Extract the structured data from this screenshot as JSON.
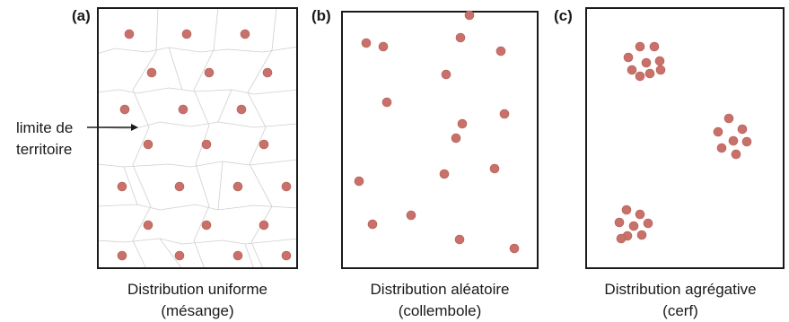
{
  "panels": [
    {
      "letter": "(a)",
      "caption_line1": "Distribution uniforme",
      "caption_line2": "(mésange)",
      "annotation_line1": "limite de",
      "annotation_line2": "territoire"
    },
    {
      "letter": "(b)",
      "caption_line1": "Distribution aléatoire",
      "caption_line2": "(collembole)"
    },
    {
      "letter": "(c)",
      "caption_line1": "Distribution agrégative",
      "caption_line2": "(cerf)"
    }
  ],
  "colors": {
    "dot": "#c8706a",
    "dot_stroke": "#b55c56",
    "frame": "#1a1a1a",
    "territory_line": "#cfcfcf"
  }
}
